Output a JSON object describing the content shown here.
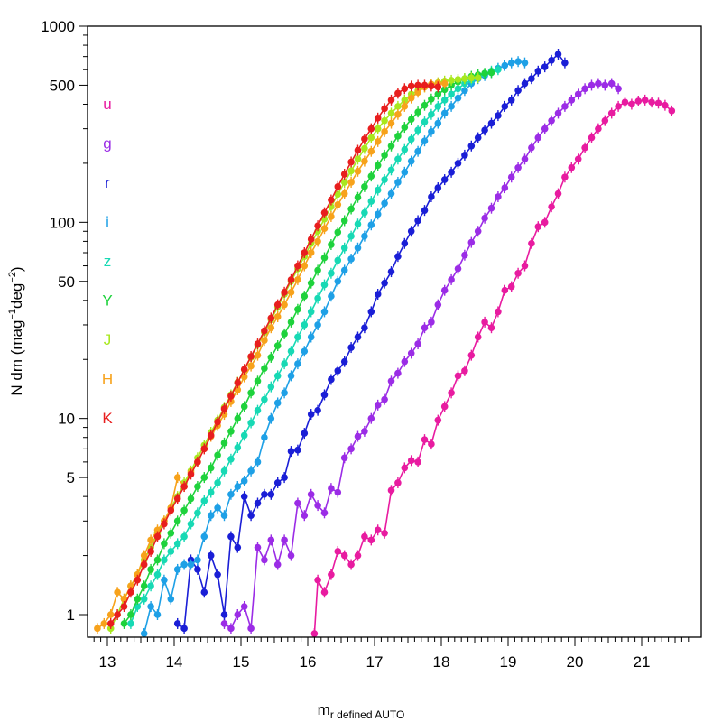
{
  "chart_data": {
    "type": "line",
    "xlabel": "m",
    "xlabel_sub": "r defined AUTO",
    "ylabel": "N dm (mag",
    "ylabel_sup1": "−1",
    "ylabel_mid": "deg",
    "ylabel_sup2": "−2",
    "ylabel_end": ")",
    "xlim": [
      12.7,
      21.8
    ],
    "ylim": [
      0.8,
      1000
    ],
    "y_scale": "log",
    "x_ticks": [
      13,
      14,
      15,
      16,
      17,
      18,
      19,
      20,
      21
    ],
    "x_tick_labels": [
      "13",
      "14",
      "15",
      "16",
      "17",
      "18",
      "19",
      "20",
      "21"
    ],
    "y_ticks": [
      1,
      5,
      10,
      50,
      100,
      500,
      1000
    ],
    "y_tick_labels": [
      "1",
      "5",
      "10",
      "50",
      "100",
      "500",
      "1000"
    ],
    "grid": false,
    "legend_position": "top-left",
    "series": [
      {
        "name": "u",
        "color": "#e81ba0",
        "x": [
          16.1,
          16.15,
          16.25,
          16.35,
          16.45,
          16.55,
          16.65,
          16.75,
          16.85,
          16.95,
          17.05,
          17.15,
          17.25,
          17.35,
          17.45,
          17.55,
          17.65,
          17.75,
          17.85,
          17.95,
          18.05,
          18.15,
          18.25,
          18.35,
          18.45,
          18.55,
          18.65,
          18.75,
          18.85,
          18.95,
          19.05,
          19.15,
          19.25,
          19.35,
          19.45,
          19.55,
          19.65,
          19.75,
          19.85,
          19.95,
          20.05,
          20.15,
          20.25,
          20.35,
          20.45,
          20.55,
          20.65,
          20.75,
          20.85,
          20.95,
          21.05,
          21.15,
          21.25,
          21.35,
          21.45
        ],
        "y": [
          0.8,
          1.5,
          1.3,
          1.6,
          2.1,
          2.0,
          1.8,
          2.0,
          2.5,
          2.4,
          2.7,
          2.6,
          4.3,
          4.7,
          5.6,
          6.1,
          6.0,
          7.8,
          7.4,
          9.8,
          11.5,
          13.5,
          16.5,
          17.5,
          21,
          26,
          31,
          29,
          35,
          45,
          47,
          55,
          60,
          78,
          95,
          100,
          120,
          140,
          170,
          190,
          210,
          240,
          270,
          300,
          330,
          360,
          390,
          410,
          400,
          415,
          420,
          410,
          405,
          395,
          370
        ]
      },
      {
        "name": "g",
        "color": "#9b2ce6",
        "x": [
          14.75,
          14.85,
          14.95,
          15.05,
          15.15,
          15.25,
          15.35,
          15.45,
          15.55,
          15.65,
          15.75,
          15.85,
          15.95,
          16.05,
          16.15,
          16.25,
          16.35,
          16.45,
          16.55,
          16.65,
          16.75,
          16.85,
          16.95,
          17.05,
          17.15,
          17.25,
          17.35,
          17.45,
          17.55,
          17.65,
          17.75,
          17.85,
          17.95,
          18.05,
          18.15,
          18.25,
          18.35,
          18.45,
          18.55,
          18.65,
          18.75,
          18.85,
          18.95,
          19.05,
          19.15,
          19.25,
          19.35,
          19.45,
          19.55,
          19.65,
          19.75,
          19.85,
          19.95,
          20.05,
          20.15,
          20.25,
          20.35,
          20.45,
          20.55,
          20.65
        ],
        "y": [
          0.9,
          0.85,
          1.0,
          1.1,
          0.85,
          2.2,
          1.9,
          2.4,
          1.8,
          2.4,
          2.0,
          3.7,
          3.2,
          4.1,
          3.6,
          3.3,
          4.4,
          4.2,
          6.3,
          7.0,
          8.1,
          8.6,
          10.0,
          11.7,
          12.5,
          15.5,
          17.0,
          19.5,
          21.5,
          24,
          29,
          31,
          38,
          45,
          51,
          58,
          68,
          79,
          90,
          105,
          118,
          135,
          150,
          170,
          190,
          210,
          240,
          270,
          300,
          330,
          360,
          390,
          420,
          450,
          480,
          500,
          510,
          500,
          510,
          480
        ]
      },
      {
        "name": "r",
        "color": "#1a1ed6",
        "x": [
          14.05,
          14.15,
          14.25,
          14.35,
          14.45,
          14.55,
          14.65,
          14.75,
          14.85,
          14.95,
          15.05,
          15.15,
          15.25,
          15.35,
          15.45,
          15.55,
          15.65,
          15.75,
          15.85,
          15.95,
          16.05,
          16.15,
          16.25,
          16.35,
          16.45,
          16.55,
          16.65,
          16.75,
          16.85,
          16.95,
          17.05,
          17.15,
          17.25,
          17.35,
          17.45,
          17.55,
          17.65,
          17.75,
          17.85,
          17.95,
          18.05,
          18.15,
          18.25,
          18.35,
          18.45,
          18.55,
          18.65,
          18.75,
          18.85,
          18.95,
          19.05,
          19.15,
          19.25,
          19.35,
          19.45,
          19.55,
          19.65,
          19.75,
          19.85
        ],
        "y": [
          0.9,
          0.85,
          1.9,
          1.7,
          1.3,
          2.0,
          1.6,
          1.0,
          2.5,
          2.2,
          4.0,
          3.2,
          3.7,
          4.1,
          4.1,
          4.7,
          5.0,
          6.8,
          6.9,
          8.4,
          10.5,
          11.0,
          13.2,
          15.8,
          17.5,
          19.5,
          23,
          26,
          29,
          35,
          43,
          49,
          56,
          67,
          78,
          90,
          102,
          115,
          135,
          150,
          165,
          180,
          200,
          220,
          245,
          270,
          295,
          320,
          350,
          390,
          420,
          470,
          510,
          540,
          590,
          620,
          670,
          720,
          650
        ]
      },
      {
        "name": "i",
        "color": "#1ea0e6",
        "x": [
          13.55,
          13.65,
          13.75,
          13.85,
          13.95,
          14.05,
          14.15,
          14.25,
          14.35,
          14.45,
          14.55,
          14.65,
          14.75,
          14.85,
          14.95,
          15.05,
          15.15,
          15.25,
          15.35,
          15.45,
          15.55,
          15.65,
          15.75,
          15.85,
          15.95,
          16.05,
          16.15,
          16.25,
          16.35,
          16.45,
          16.55,
          16.65,
          16.75,
          16.85,
          16.95,
          17.05,
          17.15,
          17.25,
          17.35,
          17.45,
          17.55,
          17.65,
          17.75,
          17.85,
          17.95,
          18.05,
          18.15,
          18.25,
          18.35,
          18.45,
          18.55,
          18.65,
          18.75,
          18.85,
          18.95,
          19.05,
          19.15,
          19.25
        ],
        "y": [
          0.8,
          1.1,
          1.0,
          1.5,
          1.2,
          1.7,
          1.8,
          1.8,
          1.9,
          2.5,
          3.2,
          3.5,
          3.2,
          4.1,
          4.5,
          4.8,
          5.4,
          6.0,
          8.0,
          10.0,
          12.0,
          13.5,
          16.5,
          19.0,
          22,
          26,
          30,
          35,
          42,
          50,
          57,
          65,
          74,
          85,
          97,
          110,
          125,
          140,
          160,
          180,
          205,
          230,
          260,
          290,
          320,
          360,
          390,
          430,
          470,
          510,
          540,
          560,
          580,
          610,
          630,
          650,
          660,
          650
        ]
      },
      {
        "name": "z",
        "color": "#17d9b4",
        "x": [
          13.35,
          13.45,
          13.55,
          13.65,
          13.75,
          13.85,
          13.95,
          14.05,
          14.15,
          14.25,
          14.35,
          14.45,
          14.55,
          14.65,
          14.75,
          14.85,
          14.95,
          15.05,
          15.15,
          15.25,
          15.35,
          15.45,
          15.55,
          15.65,
          15.75,
          15.85,
          15.95,
          16.05,
          16.15,
          16.25,
          16.35,
          16.45,
          16.55,
          16.65,
          16.75,
          16.85,
          16.95,
          17.05,
          17.15,
          17.25,
          17.35,
          17.45,
          17.55,
          17.65,
          17.75,
          17.85,
          17.95,
          18.05,
          18.15,
          18.25,
          18.35,
          18.45,
          18.55,
          18.65,
          18.75,
          18.85
        ],
        "y": [
          0.9,
          1.1,
          1.2,
          1.4,
          1.6,
          1.9,
          2.1,
          2.3,
          2.5,
          2.9,
          3.3,
          3.8,
          4.2,
          4.7,
          5.4,
          6.2,
          7.1,
          8.2,
          9.5,
          11.0,
          12.5,
          14.5,
          16.5,
          19,
          22,
          26,
          30,
          35,
          41,
          48,
          55,
          64,
          74,
          85,
          98,
          112,
          128,
          146,
          165,
          185,
          210,
          235,
          265,
          295,
          325,
          355,
          390,
          420,
          450,
          480,
          510,
          530,
          550,
          570,
          590,
          600
        ]
      },
      {
        "name": "Y",
        "color": "#1ed23c",
        "x": [
          13.25,
          13.35,
          13.45,
          13.55,
          13.65,
          13.75,
          13.85,
          13.95,
          14.05,
          14.15,
          14.25,
          14.35,
          14.45,
          14.55,
          14.65,
          14.75,
          14.85,
          14.95,
          15.05,
          15.15,
          15.25,
          15.35,
          15.45,
          15.55,
          15.65,
          15.75,
          15.85,
          15.95,
          16.05,
          16.15,
          16.25,
          16.35,
          16.45,
          16.55,
          16.65,
          16.75,
          16.85,
          16.95,
          17.05,
          17.15,
          17.25,
          17.35,
          17.45,
          17.55,
          17.65,
          17.75,
          17.85,
          17.95,
          18.05,
          18.15,
          18.25,
          18.35,
          18.45,
          18.55,
          18.65,
          18.75
        ],
        "y": [
          0.9,
          1.0,
          1.2,
          1.4,
          1.7,
          1.9,
          2.3,
          2.6,
          3.0,
          3.4,
          3.9,
          4.5,
          5.0,
          5.6,
          6.5,
          7.5,
          8.6,
          10.0,
          11.5,
          13.5,
          15.5,
          18,
          20.5,
          23.5,
          27,
          31,
          36,
          42,
          49,
          57,
          66,
          77,
          89,
          102,
          117,
          134,
          152,
          172,
          195,
          220,
          245,
          275,
          305,
          335,
          365,
          395,
          425,
          450,
          475,
          500,
          520,
          540,
          555,
          565,
          575,
          580
        ]
      },
      {
        "name": "J",
        "color": "#a8e81e",
        "x": [
          13.05,
          13.15,
          13.25,
          13.35,
          13.45,
          13.55,
          13.65,
          13.75,
          13.85,
          13.95,
          14.05,
          14.15,
          14.25,
          14.35,
          14.45,
          14.55,
          14.65,
          14.75,
          14.85,
          14.95,
          15.05,
          15.15,
          15.25,
          15.35,
          15.45,
          15.55,
          15.65,
          15.75,
          15.85,
          15.95,
          16.05,
          16.15,
          16.25,
          16.35,
          16.45,
          16.55,
          16.65,
          16.75,
          16.85,
          16.95,
          17.05,
          17.15,
          17.25,
          17.35,
          17.45,
          17.55,
          17.65,
          17.75,
          17.85,
          17.95,
          18.05,
          18.15,
          18.25,
          18.35,
          18.45,
          18.55
        ],
        "y": [
          0.85,
          1.0,
          1.2,
          1.4,
          1.6,
          1.9,
          2.2,
          2.6,
          3.0,
          3.5,
          4.0,
          4.7,
          5.4,
          6.3,
          7.3,
          8.5,
          9.8,
          11.4,
          13.2,
          15.3,
          17.7,
          20.5,
          23.7,
          27.5,
          31.9,
          37,
          43,
          50,
          58,
          67,
          78,
          90,
          104,
          120,
          139,
          160,
          183,
          210,
          238,
          270,
          300,
          330,
          360,
          390,
          420,
          450,
          470,
          490,
          505,
          515,
          525,
          530,
          535,
          540,
          545,
          545
        ]
      },
      {
        "name": "H",
        "color": "#f7a21b",
        "x": [
          12.85,
          12.95,
          13.05,
          13.15,
          13.25,
          13.35,
          13.45,
          13.55,
          13.65,
          13.75,
          13.85,
          13.95,
          14.05,
          14.15,
          14.25,
          14.35,
          14.45,
          14.55,
          14.65,
          14.75,
          14.85,
          14.95,
          15.05,
          15.15,
          15.25,
          15.35,
          15.45,
          15.55,
          15.65,
          15.75,
          15.85,
          15.95,
          16.05,
          16.15,
          16.25,
          16.35,
          16.45,
          16.55,
          16.65,
          16.75,
          16.85,
          16.95,
          17.05,
          17.15,
          17.25,
          17.35,
          17.45,
          17.55,
          17.65,
          17.75,
          17.85,
          17.95,
          18.05
        ],
        "y": [
          0.85,
          0.9,
          1.0,
          1.3,
          1.2,
          1.4,
          1.6,
          2.0,
          2.4,
          2.7,
          3.0,
          3.5,
          5.0,
          4.5,
          5.3,
          6.0,
          7.0,
          8.1,
          9.2,
          10.5,
          12.2,
          14.0,
          16.3,
          18.5,
          21,
          25,
          29,
          33,
          38,
          44,
          51,
          60,
          70,
          80,
          93,
          107,
          123,
          140,
          160,
          182,
          205,
          230,
          258,
          290,
          320,
          355,
          390,
          430,
          460,
          490,
          505,
          510,
          510
        ]
      },
      {
        "name": "K",
        "color": "#e81e1e",
        "x": [
          13.05,
          13.15,
          13.25,
          13.35,
          13.45,
          13.55,
          13.65,
          13.75,
          13.85,
          13.95,
          14.05,
          14.15,
          14.25,
          14.35,
          14.45,
          14.55,
          14.65,
          14.75,
          14.85,
          14.95,
          15.05,
          15.15,
          15.25,
          15.35,
          15.45,
          15.55,
          15.65,
          15.75,
          15.85,
          15.95,
          16.05,
          16.15,
          16.25,
          16.35,
          16.45,
          16.55,
          16.65,
          16.75,
          16.85,
          16.95,
          17.05,
          17.15,
          17.25,
          17.35,
          17.45,
          17.55,
          17.65,
          17.75,
          17.85,
          17.95
        ],
        "y": [
          0.9,
          1.0,
          1.1,
          1.3,
          1.5,
          1.8,
          2.1,
          2.5,
          2.9,
          3.4,
          3.9,
          4.5,
          5.2,
          6.0,
          7.0,
          8.2,
          9.6,
          11.2,
          13.0,
          15.2,
          17.8,
          20.7,
          24,
          28,
          32.5,
          38,
          44,
          51,
          60,
          70,
          82,
          96,
          112,
          130,
          152,
          176,
          203,
          233,
          266,
          300,
          340,
          380,
          420,
          455,
          480,
          495,
          500,
          500,
          495,
          490
        ]
      }
    ]
  }
}
